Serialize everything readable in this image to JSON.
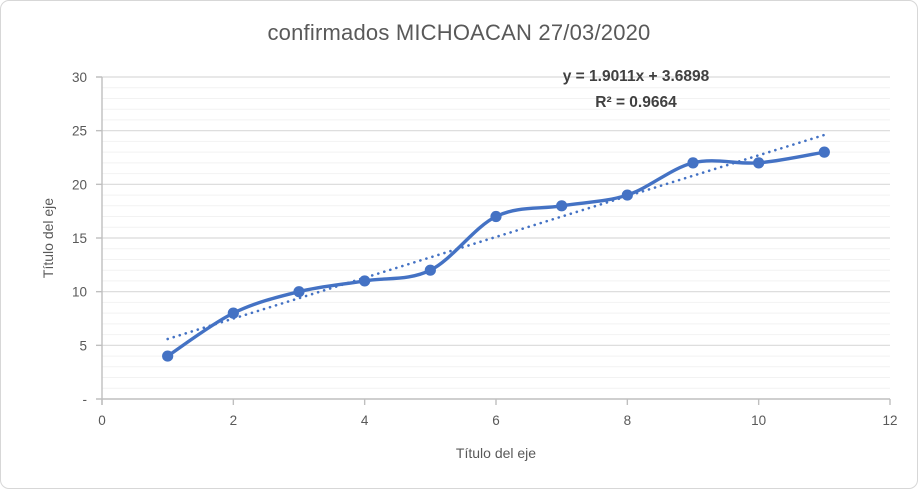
{
  "chart_data": {
    "type": "line",
    "title": "confirmados MICHOACAN 27/03/2020",
    "xlabel": "Título del eje",
    "ylabel": "Título del eje",
    "x": [
      1,
      2,
      3,
      4,
      5,
      6,
      7,
      8,
      9,
      10,
      11
    ],
    "y": [
      4,
      8,
      10,
      11,
      12,
      17,
      18,
      19,
      22,
      22,
      23
    ],
    "xlim": [
      0,
      12
    ],
    "ylim": [
      0,
      30
    ],
    "x_tick_step": 2,
    "y_major_step": 5,
    "y_minor_step": 1,
    "x_tick_labels": [
      "0",
      "2",
      "4",
      "6",
      "8",
      "10",
      "12"
    ],
    "y_tick_labels": [
      "-",
      "5",
      "10",
      "15",
      "20",
      "25",
      "30"
    ],
    "grid": "horizontal-major-and-minor",
    "legend": "none",
    "smooth_line": true,
    "marker": "circle",
    "trendline": {
      "type": "linear",
      "slope": 1.9011,
      "intercept": 3.6898,
      "x_start": 1,
      "x_end": 11,
      "equation": "y = 1.9011x + 3.6898",
      "r2_label": "R² = 0.9664"
    },
    "colors": {
      "series": "#4472C4",
      "trendline": "#4472C4",
      "grid_major": "#D9D9D9",
      "grid_minor": "#F2F2F2",
      "axis_line": "#BFBFBF",
      "tick_text": "#595959",
      "title_text": "#595959",
      "equation_text": "#404040"
    }
  }
}
